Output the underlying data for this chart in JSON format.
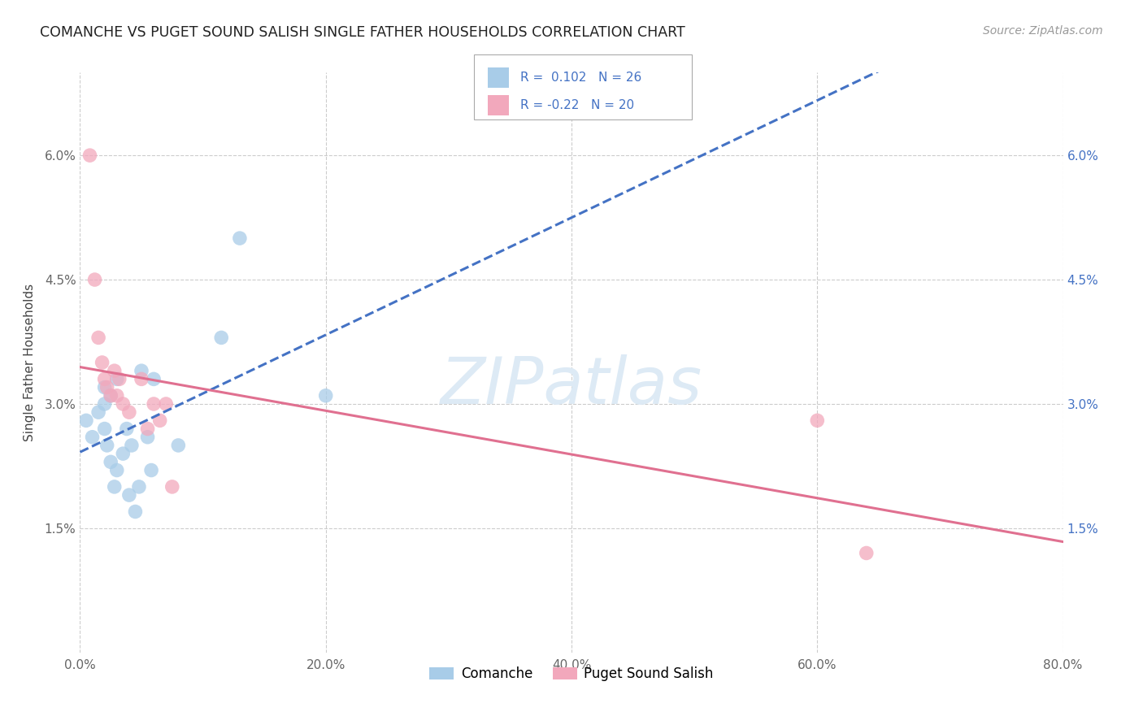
{
  "title": "COMANCHE VS PUGET SOUND SALISH SINGLE FATHER HOUSEHOLDS CORRELATION CHART",
  "source": "Source: ZipAtlas.com",
  "ylabel": "Single Father Households",
  "xlim": [
    0.0,
    0.8
  ],
  "ylim": [
    0.0,
    0.07
  ],
  "yticks": [
    0.015,
    0.03,
    0.045,
    0.06
  ],
  "xticks": [
    0.0,
    0.2,
    0.4,
    0.6,
    0.8
  ],
  "legend_labels": [
    "Comanche",
    "Puget Sound Salish"
  ],
  "R_comanche": 0.102,
  "N_comanche": 26,
  "R_salish": -0.22,
  "N_salish": 20,
  "color_comanche": "#a8cce8",
  "color_salish": "#f2a8bc",
  "color_comanche_line": "#4472c4",
  "color_salish_line": "#e07090",
  "comanche_x": [
    0.005,
    0.01,
    0.015,
    0.02,
    0.02,
    0.02,
    0.022,
    0.025,
    0.025,
    0.028,
    0.03,
    0.03,
    0.035,
    0.038,
    0.04,
    0.042,
    0.045,
    0.048,
    0.05,
    0.055,
    0.058,
    0.06,
    0.08,
    0.115,
    0.13,
    0.2
  ],
  "comanche_y": [
    0.028,
    0.026,
    0.029,
    0.027,
    0.03,
    0.032,
    0.025,
    0.023,
    0.031,
    0.02,
    0.022,
    0.033,
    0.024,
    0.027,
    0.019,
    0.025,
    0.017,
    0.02,
    0.034,
    0.026,
    0.022,
    0.033,
    0.025,
    0.038,
    0.05,
    0.031
  ],
  "salish_x": [
    0.008,
    0.012,
    0.015,
    0.018,
    0.02,
    0.022,
    0.025,
    0.028,
    0.03,
    0.032,
    0.035,
    0.04,
    0.05,
    0.055,
    0.06,
    0.065,
    0.07,
    0.075,
    0.6,
    0.64
  ],
  "salish_y": [
    0.06,
    0.045,
    0.038,
    0.035,
    0.033,
    0.032,
    0.031,
    0.034,
    0.031,
    0.033,
    0.03,
    0.029,
    0.033,
    0.027,
    0.03,
    0.028,
    0.03,
    0.02,
    0.028,
    0.012
  ],
  "background_color": "#ffffff",
  "grid_color": "#cccccc",
  "watermark_color": "#ddeaf5"
}
